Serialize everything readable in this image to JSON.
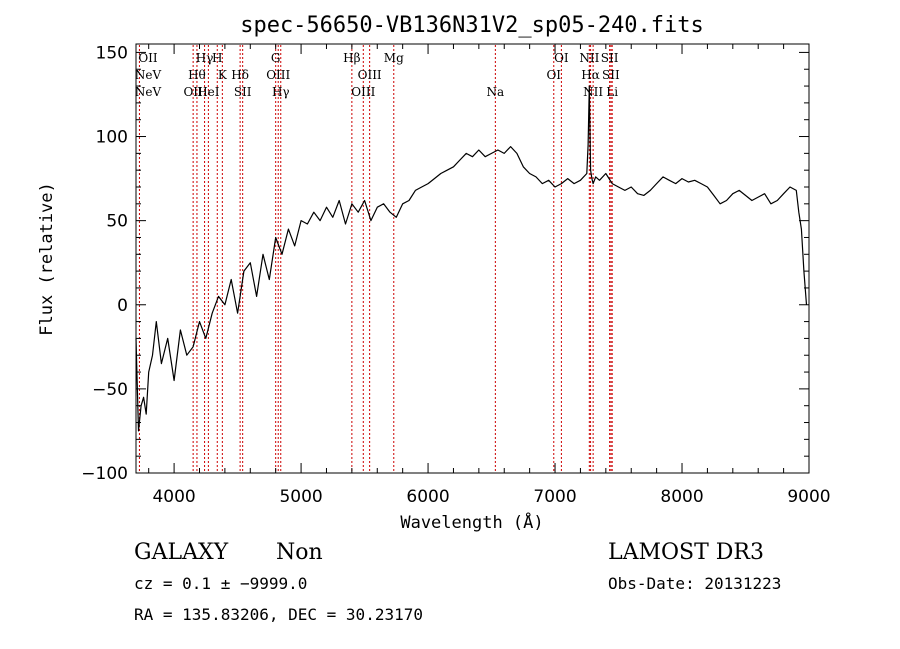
{
  "chart_data": {
    "type": "line",
    "title": "spec-56650-VB136N31V2_sp05-240.fits",
    "xlabel": "Wavelength (Å)",
    "ylabel": "Flux (relative)",
    "xlim": [
      3700,
      9000
    ],
    "ylim": [
      -100,
      155
    ],
    "x_ticks": [
      4000,
      5000,
      6000,
      7000,
      8000,
      9000
    ],
    "y_ticks": [
      -100,
      -50,
      0,
      50,
      100,
      150
    ],
    "grid": false,
    "series": [
      {
        "color": "#000000",
        "x": [
          3700,
          3720,
          3740,
          3760,
          3780,
          3800,
          3830,
          3860,
          3900,
          3950,
          4000,
          4050,
          4100,
          4150,
          4200,
          4250,
          4300,
          4350,
          4400,
          4450,
          4500,
          4550,
          4600,
          4650,
          4700,
          4750,
          4800,
          4850,
          4900,
          4950,
          5000,
          5050,
          5100,
          5150,
          5200,
          5250,
          5300,
          5350,
          5400,
          5450,
          5500,
          5550,
          5600,
          5650,
          5700,
          5750,
          5800,
          5850,
          5900,
          5950,
          6000,
          6050,
          6100,
          6150,
          6200,
          6250,
          6300,
          6350,
          6400,
          6450,
          6500,
          6550,
          6600,
          6650,
          6700,
          6750,
          6800,
          6850,
          6900,
          6950,
          7000,
          7050,
          7100,
          7150,
          7200,
          7250,
          7260,
          7270,
          7280,
          7290,
          7300,
          7320,
          7350,
          7400,
          7450,
          7500,
          7550,
          7600,
          7650,
          7700,
          7750,
          7800,
          7850,
          7900,
          7950,
          8000,
          8050,
          8100,
          8150,
          8200,
          8250,
          8300,
          8350,
          8400,
          8450,
          8500,
          8550,
          8600,
          8650,
          8700,
          8750,
          8800,
          8850,
          8900,
          8920,
          8940,
          8960,
          8980
        ],
        "y": [
          -20,
          -75,
          -60,
          -55,
          -65,
          -40,
          -30,
          -10,
          -35,
          -20,
          -45,
          -15,
          -30,
          -25,
          -10,
          -20,
          -5,
          5,
          0,
          15,
          -5,
          20,
          25,
          5,
          30,
          15,
          40,
          30,
          45,
          35,
          50,
          48,
          55,
          50,
          58,
          52,
          62,
          48,
          60,
          55,
          62,
          50,
          58,
          60,
          55,
          52,
          60,
          62,
          68,
          70,
          72,
          75,
          78,
          80,
          82,
          86,
          90,
          88,
          92,
          88,
          90,
          92,
          90,
          94,
          90,
          82,
          78,
          76,
          72,
          74,
          70,
          72,
          75,
          72,
          74,
          78,
          95,
          130,
          80,
          75,
          72,
          76,
          74,
          78,
          72,
          70,
          68,
          70,
          66,
          65,
          68,
          72,
          76,
          74,
          72,
          75,
          73,
          74,
          72,
          70,
          65,
          60,
          62,
          66,
          68,
          65,
          62,
          64,
          66,
          60,
          62,
          66,
          70,
          68,
          55,
          45,
          20,
          0
        ]
      }
    ],
    "line_ids": [
      {
        "label": "NeV",
        "wavelength": 3346,
        "row": 1
      },
      {
        "label": "NeV",
        "wavelength": 3426,
        "row": 2
      },
      {
        "label": "OII",
        "wavelength": 3727,
        "row": 0
      },
      {
        "label": "OII",
        "wavelength": 4150,
        "row": 2
      },
      {
        "label": "Hθ",
        "wavelength": 4180,
        "row": 1
      },
      {
        "label": "Hγ",
        "wavelength": 4240,
        "row": 0
      },
      {
        "label": "HeI",
        "wavelength": 4270,
        "row": 2
      },
      {
        "label": "H",
        "wavelength": 4340,
        "row": 0
      },
      {
        "label": "K",
        "wavelength": 4380,
        "row": 1
      },
      {
        "label": "Hδ",
        "wavelength": 4520,
        "row": 1
      },
      {
        "label": "SII",
        "wavelength": 4540,
        "row": 2
      },
      {
        "label": "G",
        "wavelength": 4800,
        "row": 0
      },
      {
        "label": "OIII",
        "wavelength": 4820,
        "row": 1
      },
      {
        "label": "Hγ",
        "wavelength": 4840,
        "row": 2
      },
      {
        "label": "Hβ",
        "wavelength": 5400,
        "row": 0
      },
      {
        "label": "OIII",
        "wavelength": 5490,
        "row": 2
      },
      {
        "label": "OIII",
        "wavelength": 5540,
        "row": 1
      },
      {
        "label": "Mg",
        "wavelength": 5730,
        "row": 0
      },
      {
        "label": "Na",
        "wavelength": 6530,
        "row": 2
      },
      {
        "label": "OI",
        "wavelength": 6990,
        "row": 1
      },
      {
        "label": "OI",
        "wavelength": 7050,
        "row": 0
      },
      {
        "label": "NII",
        "wavelength": 7270,
        "row": 0
      },
      {
        "label": "Hα",
        "wavelength": 7280,
        "row": 1
      },
      {
        "label": "NII",
        "wavelength": 7300,
        "row": 2
      },
      {
        "label": "SII",
        "wavelength": 7430,
        "row": 0
      },
      {
        "label": "SII",
        "wavelength": 7440,
        "row": 1
      },
      {
        "label": "Li",
        "wavelength": 7450,
        "row": 2
      }
    ],
    "line_color": "#cc0000"
  },
  "info": {
    "object_class": "GALAXY",
    "subclass": "Non",
    "survey": "LAMOST DR3",
    "cz": "cz = 0.1 ± −9999.0",
    "obs_date": "Obs-Date: 20131223",
    "radec": "RA = 135.83206, DEC =  30.23170"
  }
}
